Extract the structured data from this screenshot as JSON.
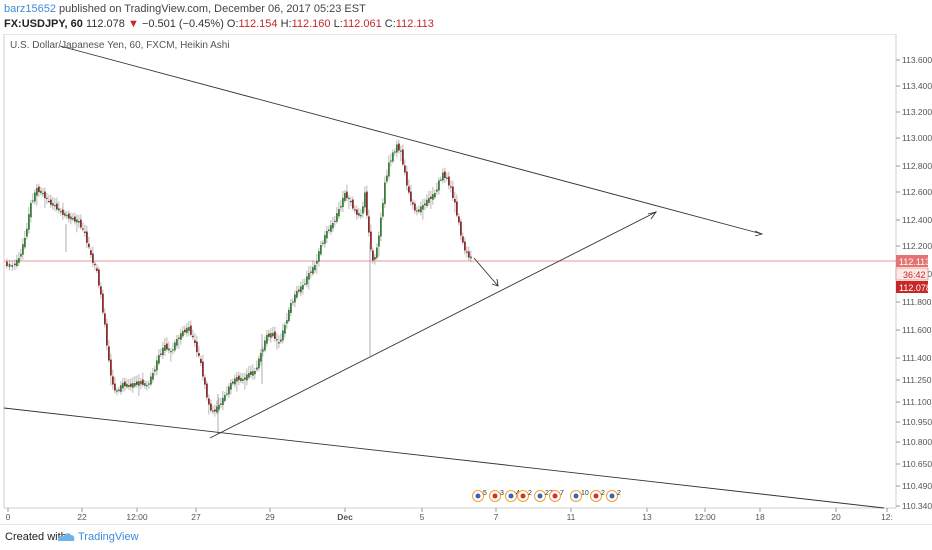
{
  "header": {
    "user": "barz15652",
    "published_text": " published on TradingView.com, December 06, 2017 05:23 EST",
    "symbol": "FX:USDJPY, 60",
    "last": "112.078",
    "change_arrow": "▼",
    "change": "−0.501 (−0.45%)",
    "o_label": "O:",
    "o_value": "112.154",
    "h_label": "H:",
    "h_value": "112.160",
    "l_label": "L:",
    "l_value": "112.061",
    "c_label": "C:",
    "c_value": "112.113"
  },
  "chart": {
    "legend": "U.S. Dollar/Japanese Yen, 60, FXCM, Heikin Ashi",
    "price_ticks": [
      "113.600",
      "113.400",
      "113.200",
      "113.000",
      "112.800",
      "112.600",
      "112.400",
      "112.200",
      "112.000",
      "111.800",
      "111.600",
      "111.400",
      "111.250",
      "111.100",
      "110.950",
      "110.800",
      "110.650",
      "110.490",
      "110.340"
    ],
    "time_ticks": [
      "0",
      "22",
      "12:00",
      "27",
      "29",
      "Dec",
      "5",
      "7",
      "11",
      "13",
      "12:00",
      "18",
      "20",
      "12:"
    ],
    "price_labels": {
      "current": "112.113",
      "countdown": "36:42",
      "last": "112.078"
    },
    "events": [
      "5",
      "3",
      "4",
      "2",
      "27",
      "7",
      "10",
      "2",
      "2"
    ],
    "colors": {
      "up": "#3e7d3e",
      "down": "#8b2c2c",
      "wick": "#999999",
      "trend": "#333333",
      "price_line": "#e57373",
      "label_red": "#c62828"
    }
  },
  "footer": {
    "created_with": "Created with",
    "brand": "TradingView"
  }
}
